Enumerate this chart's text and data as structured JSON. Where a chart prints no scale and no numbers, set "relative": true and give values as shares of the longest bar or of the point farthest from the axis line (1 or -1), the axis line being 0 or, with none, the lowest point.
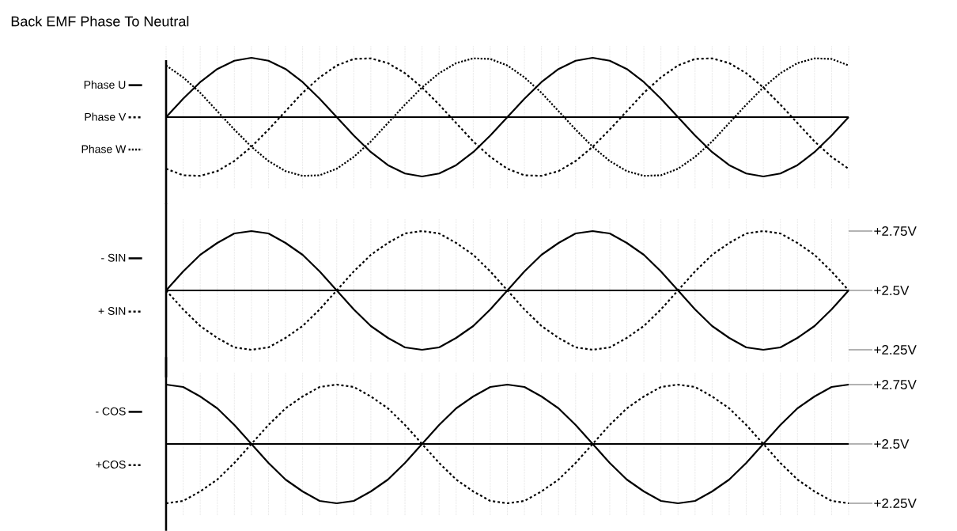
{
  "chart_data": [
    {
      "type": "line",
      "title": "Back EMF Phase To Neutral",
      "relative": true,
      "grid": "x",
      "legend": "left",
      "tick_labels": false,
      "categories": [
        null,
        null,
        null,
        null,
        null,
        null,
        null,
        null,
        null,
        null,
        null,
        null,
        null,
        null,
        null,
        null,
        null,
        null,
        null,
        null,
        null,
        null,
        null,
        null,
        null,
        null,
        null,
        null,
        null,
        null,
        null,
        null,
        null,
        null,
        null,
        null,
        null,
        null,
        null,
        null,
        null
      ],
      "series": [
        {
          "name": "Phase U",
          "color": "#000000",
          "line_style": "solid",
          "values": [
            0,
            0.31,
            0.59,
            0.81,
            0.95,
            1,
            0.95,
            0.81,
            0.59,
            0.31,
            0,
            -0.31,
            -0.59,
            -0.81,
            -0.95,
            -1,
            -0.95,
            -0.81,
            -0.59,
            -0.31,
            0,
            0.31,
            0.59,
            0.81,
            0.95,
            1,
            0.95,
            0.81,
            0.59,
            0.31,
            0,
            -0.31,
            -0.59,
            -0.81,
            -0.95,
            -1,
            -0.95,
            -0.81,
            -0.59,
            -0.31,
            0
          ]
        },
        {
          "name": "Phase V",
          "color": "#000000",
          "line_style": "dashed",
          "values": [
            -0.87,
            -0.98,
            -0.99,
            -0.91,
            -0.74,
            -0.5,
            -0.21,
            0.1,
            0.41,
            0.67,
            0.87,
            0.98,
            0.99,
            0.91,
            0.74,
            0.5,
            0.21,
            -0.1,
            -0.41,
            -0.67,
            -0.87,
            -0.98,
            -0.99,
            -0.91,
            -0.74,
            -0.5,
            -0.21,
            0.1,
            0.41,
            0.67,
            0.87,
            0.98,
            0.99,
            0.91,
            0.74,
            0.5,
            0.21,
            -0.1,
            -0.41,
            -0.67,
            -0.87
          ]
        },
        {
          "name": "Phase W",
          "color": "#000000",
          "line_style": "dotted",
          "values": [
            0.87,
            0.67,
            0.41,
            0.1,
            -0.21,
            -0.5,
            -0.74,
            -0.91,
            -0.99,
            -0.98,
            -0.87,
            -0.67,
            -0.41,
            -0.1,
            0.21,
            0.5,
            0.74,
            0.91,
            0.99,
            0.98,
            0.87,
            0.67,
            0.41,
            0.1,
            -0.21,
            -0.5,
            -0.74,
            -0.91,
            -0.99,
            -0.98,
            -0.87,
            -0.67,
            -0.41,
            -0.1,
            0.21,
            0.5,
            0.74,
            0.91,
            0.99,
            0.98,
            0.87
          ]
        }
      ]
    },
    {
      "type": "line",
      "grid": "x",
      "legend": "left",
      "tick_labels": "y",
      "ylim": [
        2.2,
        2.8
      ],
      "yticks": [
        {
          "value": 2.25,
          "label": "+2.25V"
        },
        {
          "value": 2.5,
          "label": "+2.5V"
        },
        {
          "value": 2.75,
          "label": "+2.75V"
        }
      ],
      "ref_lines": [
        {
          "axis": "y",
          "value": 2.5
        }
      ],
      "categories": [
        null,
        null,
        null,
        null,
        null,
        null,
        null,
        null,
        null,
        null,
        null,
        null,
        null,
        null,
        null,
        null,
        null,
        null,
        null,
        null,
        null,
        null,
        null,
        null,
        null,
        null,
        null,
        null,
        null,
        null,
        null,
        null,
        null,
        null,
        null,
        null,
        null,
        null,
        null,
        null,
        null
      ],
      "series": [
        {
          "name": "- SIN",
          "color": "#000000",
          "line_style": "solid",
          "values": [
            2.5,
            2.58,
            2.65,
            2.7,
            2.74,
            2.75,
            2.74,
            2.7,
            2.65,
            2.58,
            2.5,
            2.42,
            2.35,
            2.3,
            2.26,
            2.25,
            2.26,
            2.3,
            2.35,
            2.42,
            2.5,
            2.58,
            2.65,
            2.7,
            2.74,
            2.75,
            2.74,
            2.7,
            2.65,
            2.58,
            2.5,
            2.42,
            2.35,
            2.3,
            2.26,
            2.25,
            2.26,
            2.3,
            2.35,
            2.42,
            2.5
          ]
        },
        {
          "name": "+ SIN",
          "color": "#000000",
          "line_style": "dashed",
          "values": [
            2.5,
            2.42,
            2.35,
            2.3,
            2.26,
            2.25,
            2.26,
            2.3,
            2.35,
            2.42,
            2.5,
            2.58,
            2.65,
            2.7,
            2.74,
            2.75,
            2.74,
            2.7,
            2.65,
            2.58,
            2.5,
            2.42,
            2.35,
            2.3,
            2.26,
            2.25,
            2.26,
            2.3,
            2.35,
            2.42,
            2.5,
            2.58,
            2.65,
            2.7,
            2.74,
            2.75,
            2.74,
            2.7,
            2.65,
            2.58,
            2.5
          ]
        }
      ]
    },
    {
      "type": "line",
      "grid": "x",
      "legend": "left",
      "tick_labels": "y",
      "ylim": [
        2.2,
        2.8
      ],
      "yticks": [
        {
          "value": 2.25,
          "label": "+2.25V"
        },
        {
          "value": 2.5,
          "label": "+2.5V"
        },
        {
          "value": 2.75,
          "label": "+2.75V"
        }
      ],
      "ref_lines": [
        {
          "axis": "y",
          "value": 2.5
        }
      ],
      "categories": [
        null,
        null,
        null,
        null,
        null,
        null,
        null,
        null,
        null,
        null,
        null,
        null,
        null,
        null,
        null,
        null,
        null,
        null,
        null,
        null,
        null,
        null,
        null,
        null,
        null,
        null,
        null,
        null,
        null,
        null,
        null,
        null,
        null,
        null,
        null,
        null,
        null,
        null,
        null,
        null,
        null
      ],
      "series": [
        {
          "name": "- COS",
          "color": "#000000",
          "line_style": "solid",
          "values": [
            2.75,
            2.74,
            2.7,
            2.65,
            2.58,
            2.5,
            2.42,
            2.35,
            2.3,
            2.26,
            2.25,
            2.26,
            2.3,
            2.35,
            2.42,
            2.5,
            2.58,
            2.65,
            2.7,
            2.74,
            2.75,
            2.74,
            2.7,
            2.65,
            2.58,
            2.5,
            2.42,
            2.35,
            2.3,
            2.26,
            2.25,
            2.26,
            2.3,
            2.35,
            2.42,
            2.5,
            2.58,
            2.65,
            2.7,
            2.74,
            2.75
          ]
        },
        {
          "name": "+COS",
          "color": "#000000",
          "line_style": "dashed",
          "values": [
            2.25,
            2.26,
            2.3,
            2.35,
            2.42,
            2.5,
            2.58,
            2.65,
            2.7,
            2.74,
            2.75,
            2.74,
            2.7,
            2.65,
            2.58,
            2.5,
            2.42,
            2.35,
            2.3,
            2.26,
            2.25,
            2.26,
            2.3,
            2.35,
            2.42,
            2.5,
            2.58,
            2.65,
            2.7,
            2.74,
            2.75,
            2.74,
            2.7,
            2.65,
            2.58,
            2.5,
            2.42,
            2.35,
            2.3,
            2.26,
            2.25
          ]
        }
      ]
    }
  ]
}
